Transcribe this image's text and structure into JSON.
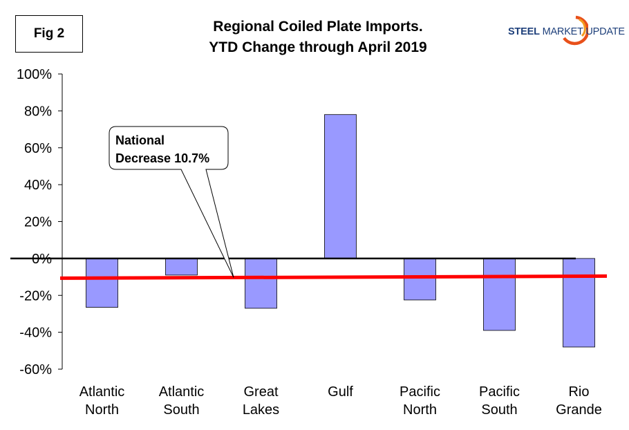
{
  "figure_label": "Fig 2",
  "title_line1": "Regional Coiled Plate Imports.",
  "title_line2": "YTD Change through April 2019",
  "logo": {
    "word1": "STEEL",
    "word2": "MARKET UPDATE"
  },
  "callout": {
    "line1": "National",
    "line2": "Decrease 10.7%"
  },
  "chart_data": {
    "type": "bar",
    "title": "Regional Coiled Plate Imports. YTD Change through April 2019",
    "categories": [
      [
        "Atlantic",
        "North"
      ],
      [
        "Atlantic",
        "South"
      ],
      [
        "Great",
        "Lakes"
      ],
      [
        "Gulf",
        ""
      ],
      [
        "Pacific",
        "North"
      ],
      [
        "Pacific",
        "South"
      ],
      [
        "Rio",
        "Grande"
      ]
    ],
    "series": [
      {
        "name": "YTD Change",
        "values": [
          -26.5,
          -9,
          -27,
          78,
          -22.5,
          -39,
          -48
        ],
        "color": "#9999ff"
      }
    ],
    "reference_line": {
      "label": "National Decrease 10.7%",
      "value": -10.7,
      "color": "#ff0000"
    },
    "ylim": [
      -60,
      100
    ],
    "yticks": [
      -60,
      -40,
      -20,
      0,
      20,
      40,
      60,
      80,
      100
    ],
    "ytick_labels": [
      "-60%",
      "-40%",
      "-20%",
      "0%",
      "20%",
      "40%",
      "60%",
      "80%",
      "100%"
    ],
    "xlabel": "",
    "ylabel": "",
    "grid": false
  }
}
